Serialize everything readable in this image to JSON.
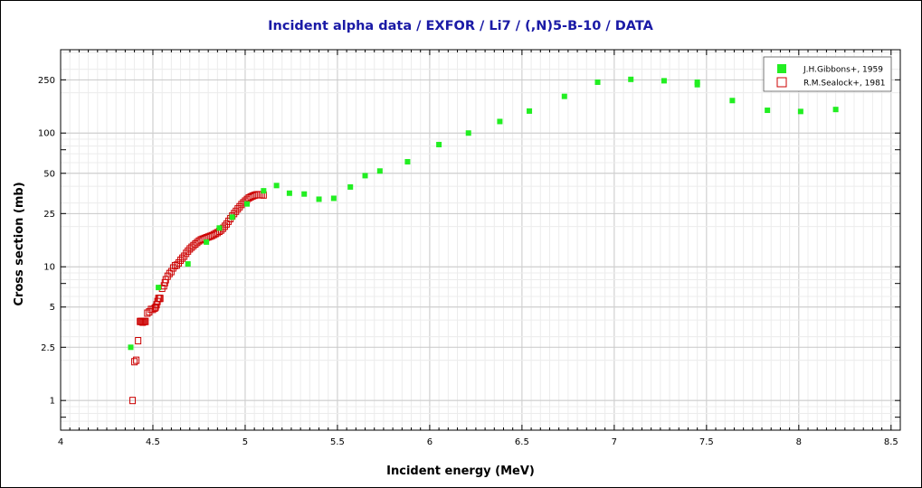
{
  "chart_data": {
    "type": "scatter",
    "title": "Incident alpha data / EXFOR / Li7 / (,N)5-B-10 / DATA",
    "xlabel": "Incident energy (MeV)",
    "ylabel": "Cross section (mb)",
    "x_scale": "linear",
    "y_scale": "log",
    "xlim": [
      4.0,
      8.55
    ],
    "ylim": [
      0.6,
      420
    ],
    "x_ticks": [
      4,
      4.5,
      5,
      5.5,
      6,
      6.5,
      7,
      7.5,
      8,
      8.5
    ],
    "x_tick_labels": [
      "4",
      "4.5",
      "5",
      "5.5",
      "6",
      "6.5",
      "7",
      "7.5",
      "8",
      "8.5"
    ],
    "y_ticks": [
      1,
      2.5,
      5,
      10,
      25,
      50,
      100,
      250
    ],
    "y_tick_labels": [
      "1",
      "2.5",
      "5",
      "10",
      "25",
      "50",
      "100",
      "250"
    ],
    "grid": true,
    "legend_position": "top-right",
    "series": [
      {
        "name": "J.H.Gibbons+, 1959",
        "marker": "filled-square",
        "color": "#22ee22",
        "x": [
          4.38,
          4.53,
          4.69,
          4.79,
          4.86,
          4.93,
          5.01,
          5.1,
          5.17,
          5.24,
          5.32,
          5.4,
          5.48,
          5.57,
          5.65,
          5.73,
          5.88,
          6.05,
          6.21,
          6.38,
          6.54,
          6.73,
          6.91,
          7.09,
          7.27,
          7.45,
          7.45,
          7.64,
          7.83,
          8.01,
          8.2
        ],
        "y": [
          2.5,
          7.0,
          10.5,
          15.3,
          19.5,
          23.5,
          29.5,
          37.0,
          40.5,
          35.5,
          35.0,
          32.0,
          32.5,
          39.5,
          48.0,
          52.0,
          61.0,
          82.0,
          100.0,
          122.0,
          146.0,
          188.0,
          240.0,
          252.0,
          246.0,
          240.0,
          230.0,
          175.0,
          148.0,
          145.0,
          150.0
        ]
      },
      {
        "name": "R.M.Sealock+, 1981",
        "marker": "open-square",
        "color": "#cc0000",
        "x": [
          4.39,
          4.4,
          4.41,
          4.42,
          4.43,
          4.435,
          4.44,
          4.445,
          4.45,
          4.455,
          4.46,
          4.47,
          4.48,
          4.49,
          4.5,
          4.51,
          4.515,
          4.52,
          4.525,
          4.53,
          4.535,
          4.54,
          4.55,
          4.56,
          4.565,
          4.57,
          4.58,
          4.59,
          4.6,
          4.61,
          4.62,
          4.63,
          4.64,
          4.65,
          4.66,
          4.67,
          4.68,
          4.69,
          4.7,
          4.71,
          4.72,
          4.73,
          4.74,
          4.75,
          4.76,
          4.77,
          4.78,
          4.79,
          4.8,
          4.81,
          4.82,
          4.83,
          4.84,
          4.85,
          4.86,
          4.87,
          4.88,
          4.89,
          4.9,
          4.91,
          4.92,
          4.93,
          4.94,
          4.95,
          4.96,
          4.97,
          4.98,
          4.99,
          5.0,
          5.01,
          5.02,
          5.03,
          5.04,
          5.05,
          5.06,
          5.07,
          5.08,
          5.09,
          5.1
        ],
        "y": [
          1.0,
          1.95,
          2.0,
          2.8,
          3.9,
          3.9,
          3.9,
          3.85,
          3.9,
          3.9,
          3.9,
          4.5,
          4.6,
          4.8,
          4.8,
          4.9,
          5.0,
          5.2,
          5.5,
          5.8,
          5.8,
          5.8,
          6.9,
          7.2,
          7.6,
          8.0,
          8.5,
          8.9,
          9.2,
          9.8,
          10.2,
          10.3,
          10.7,
          11.2,
          11.6,
          12.0,
          12.6,
          13.1,
          13.6,
          14.0,
          14.4,
          14.8,
          15.2,
          15.6,
          15.9,
          16.1,
          16.3,
          16.5,
          16.7,
          16.9,
          17.1,
          17.4,
          17.7,
          18.0,
          18.4,
          18.8,
          19.4,
          20.1,
          20.9,
          21.9,
          22.9,
          24.0,
          25.0,
          26.0,
          27.1,
          28.1,
          29.2,
          30.1,
          31.0,
          31.9,
          32.7,
          33.3,
          33.8,
          34.2,
          34.5,
          34.6,
          34.6,
          34.5,
          34.4
        ]
      }
    ]
  }
}
